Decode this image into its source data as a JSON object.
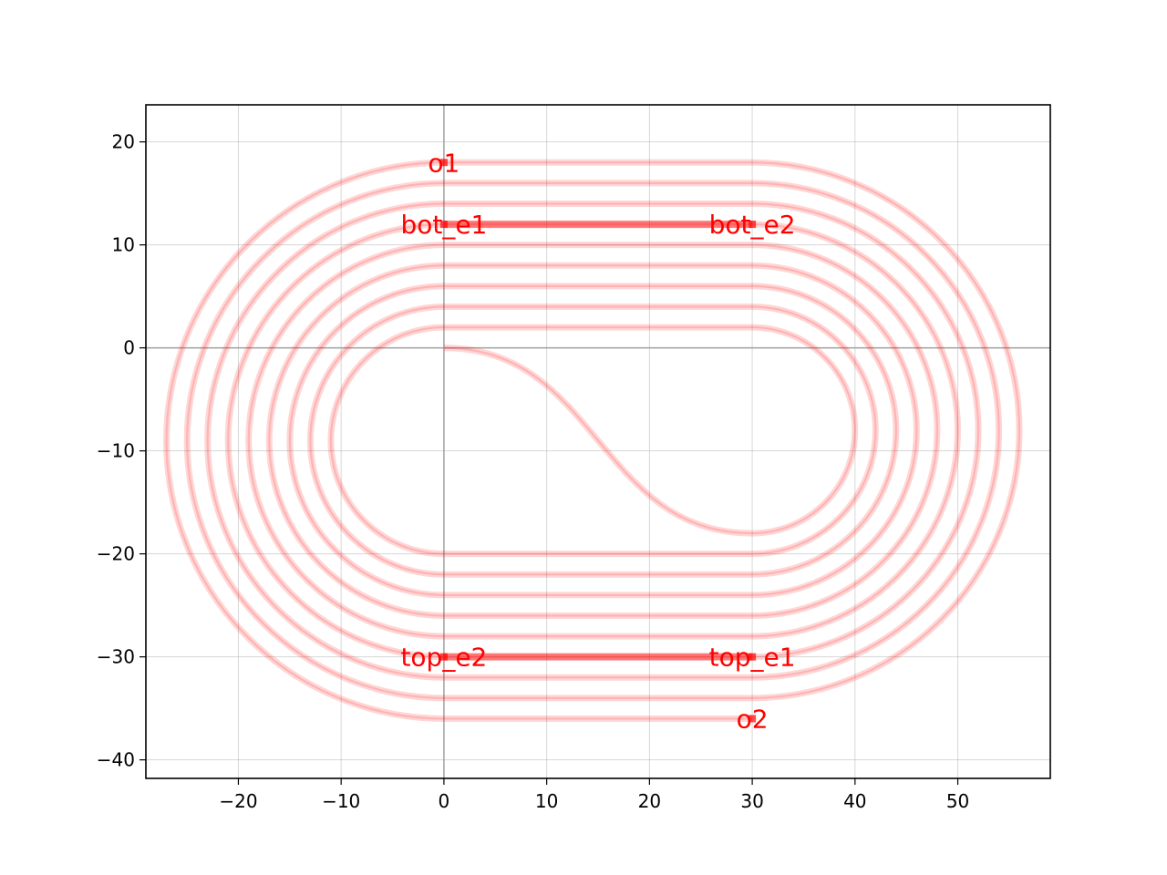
{
  "chart_data": {
    "type": "line",
    "title": "",
    "xlabel": "",
    "ylabel": "",
    "xlim": [
      -29,
      59
    ],
    "ylim": [
      -41.8,
      23.6
    ],
    "grid": true,
    "x_ticks": [
      -20,
      -10,
      0,
      10,
      20,
      30,
      40,
      50
    ],
    "x_tick_labels": [
      "−20",
      "−10",
      "0",
      "10",
      "20",
      "30",
      "40",
      "50"
    ],
    "y_ticks": [
      20,
      10,
      0,
      -10,
      -20,
      -30,
      -40
    ],
    "y_tick_labels": [
      "20",
      "10",
      "0",
      "−10",
      "−20",
      "−30",
      "−40"
    ],
    "colors": {
      "waveguide": "#ff0000",
      "port_label": "#ff0000",
      "axis_zero_line": "#999999"
    },
    "spiral": {
      "straight_x": [
        0,
        30
      ],
      "left_center": [
        0,
        -10
      ],
      "right_center": [
        30,
        -8
      ],
      "top_y": [
        18,
        16,
        14,
        12,
        10,
        8,
        6,
        4,
        2
      ],
      "bottom_y": [
        -20,
        -22,
        -24,
        -26,
        -28,
        -30,
        -32,
        -34,
        -36
      ],
      "s_bend": {
        "from": [
          0,
          0
        ],
        "to": [
          30,
          -18
        ]
      }
    },
    "ports": [
      {
        "name": "o1",
        "x": 0,
        "y": 18
      },
      {
        "name": "bot_e1",
        "x": 0,
        "y": 12
      },
      {
        "name": "bot_e2",
        "x": 30,
        "y": 12
      },
      {
        "name": "top_e2",
        "x": 0,
        "y": -30
      },
      {
        "name": "top_e1",
        "x": 30,
        "y": -30
      },
      {
        "name": "o2",
        "x": 30,
        "y": -36
      }
    ],
    "electrodes": [
      {
        "from": "bot_e1",
        "to": "bot_e2"
      },
      {
        "from": "top_e2",
        "to": "top_e1"
      }
    ]
  }
}
